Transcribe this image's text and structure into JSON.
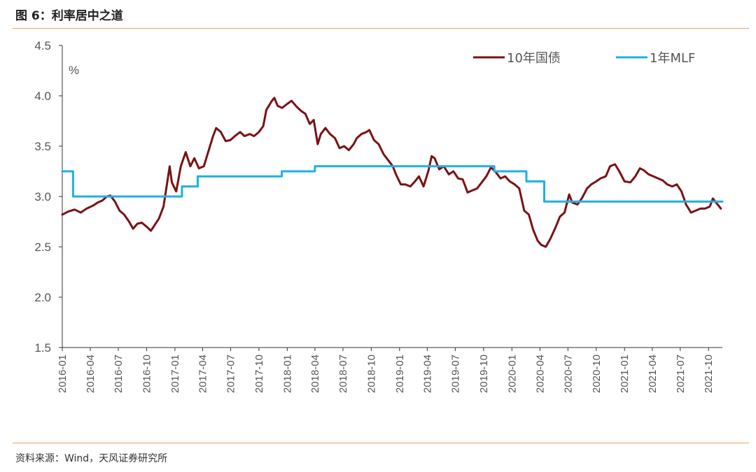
{
  "figure": {
    "title": "图 6：利率居中之道",
    "source": "资料来源：Wind，天风证券研究所"
  },
  "colors": {
    "rule": "#f0a35a",
    "series_bond": "#7b1113",
    "series_mlf": "#1fb0e0",
    "axis": "#333333"
  },
  "chart_data": {
    "type": "line",
    "title": "",
    "xlabel": "",
    "ylabel": "%",
    "ylim": [
      1.5,
      4.5
    ],
    "xlim": [
      "2016-01-01",
      "2021-11-15"
    ],
    "y_ticks": [
      "4.5",
      "4.0",
      "3.5",
      "3.0",
      "2.5",
      "2.0",
      "1.5"
    ],
    "x_ticks": [
      "2016-01",
      "2016-04",
      "2016-07",
      "2016-10",
      "2017-01",
      "2017-04",
      "2017-07",
      "2017-10",
      "2018-01",
      "2018-04",
      "2018-07",
      "2018-10",
      "2019-01",
      "2019-04",
      "2019-07",
      "2019-10",
      "2020-01",
      "2020-04",
      "2020-07",
      "2020-10",
      "2021-01",
      "2021-04",
      "2021-07",
      "2021-10"
    ],
    "grid": false,
    "legend_position": "top-right",
    "series": [
      {
        "name": "10年国债",
        "step": false,
        "points": [
          [
            "2016-01-01",
            2.82
          ],
          [
            "2016-01-20",
            2.85
          ],
          [
            "2016-02-10",
            2.87
          ],
          [
            "2016-03-01",
            2.84
          ],
          [
            "2016-03-20",
            2.88
          ],
          [
            "2016-04-10",
            2.91
          ],
          [
            "2016-04-25",
            2.94
          ],
          [
            "2016-05-10",
            2.96
          ],
          [
            "2016-05-25",
            3.0
          ],
          [
            "2016-06-05",
            3.01
          ],
          [
            "2016-06-20",
            2.95
          ],
          [
            "2016-07-05",
            2.86
          ],
          [
            "2016-07-20",
            2.82
          ],
          [
            "2016-08-05",
            2.75
          ],
          [
            "2016-08-18",
            2.68
          ],
          [
            "2016-09-01",
            2.73
          ],
          [
            "2016-09-15",
            2.74
          ],
          [
            "2016-10-01",
            2.7
          ],
          [
            "2016-10-15",
            2.66
          ],
          [
            "2016-10-28",
            2.72
          ],
          [
            "2016-11-10",
            2.78
          ],
          [
            "2016-11-25",
            2.9
          ],
          [
            "2016-12-05",
            3.1
          ],
          [
            "2016-12-15",
            3.3
          ],
          [
            "2016-12-22",
            3.14
          ],
          [
            "2017-01-05",
            3.05
          ],
          [
            "2017-01-20",
            3.3
          ],
          [
            "2017-02-05",
            3.44
          ],
          [
            "2017-02-20",
            3.3
          ],
          [
            "2017-03-05",
            3.38
          ],
          [
            "2017-03-20",
            3.28
          ],
          [
            "2017-04-05",
            3.3
          ],
          [
            "2017-04-20",
            3.45
          ],
          [
            "2017-05-05",
            3.6
          ],
          [
            "2017-05-15",
            3.68
          ],
          [
            "2017-05-30",
            3.64
          ],
          [
            "2017-06-15",
            3.55
          ],
          [
            "2017-06-30",
            3.56
          ],
          [
            "2017-07-15",
            3.6
          ],
          [
            "2017-08-01",
            3.64
          ],
          [
            "2017-08-15",
            3.6
          ],
          [
            "2017-09-01",
            3.62
          ],
          [
            "2017-09-15",
            3.6
          ],
          [
            "2017-10-01",
            3.64
          ],
          [
            "2017-10-15",
            3.7
          ],
          [
            "2017-10-25",
            3.86
          ],
          [
            "2017-11-10",
            3.94
          ],
          [
            "2017-11-20",
            3.98
          ],
          [
            "2017-12-01",
            3.9
          ],
          [
            "2017-12-15",
            3.88
          ],
          [
            "2018-01-01",
            3.92
          ],
          [
            "2018-01-15",
            3.95
          ],
          [
            "2018-02-01",
            3.89
          ],
          [
            "2018-02-15",
            3.85
          ],
          [
            "2018-03-01",
            3.82
          ],
          [
            "2018-03-15",
            3.72
          ],
          [
            "2018-03-28",
            3.76
          ],
          [
            "2018-04-10",
            3.52
          ],
          [
            "2018-04-20",
            3.62
          ],
          [
            "2018-05-05",
            3.68
          ],
          [
            "2018-05-20",
            3.62
          ],
          [
            "2018-06-05",
            3.58
          ],
          [
            "2018-06-20",
            3.48
          ],
          [
            "2018-07-05",
            3.5
          ],
          [
            "2018-07-20",
            3.46
          ],
          [
            "2018-08-05",
            3.52
          ],
          [
            "2018-08-15",
            3.58
          ],
          [
            "2018-08-30",
            3.62
          ],
          [
            "2018-09-15",
            3.64
          ],
          [
            "2018-09-25",
            3.66
          ],
          [
            "2018-10-10",
            3.56
          ],
          [
            "2018-10-25",
            3.52
          ],
          [
            "2018-11-10",
            3.42
          ],
          [
            "2018-11-25",
            3.36
          ],
          [
            "2018-12-10",
            3.3
          ],
          [
            "2018-12-20",
            3.22
          ],
          [
            "2019-01-05",
            3.12
          ],
          [
            "2019-01-20",
            3.12
          ],
          [
            "2019-02-05",
            3.1
          ],
          [
            "2019-02-20",
            3.15
          ],
          [
            "2019-03-05",
            3.2
          ],
          [
            "2019-03-20",
            3.1
          ],
          [
            "2019-04-05",
            3.26
          ],
          [
            "2019-04-15",
            3.4
          ],
          [
            "2019-04-25",
            3.38
          ],
          [
            "2019-05-10",
            3.27
          ],
          [
            "2019-05-25",
            3.3
          ],
          [
            "2019-06-10",
            3.22
          ],
          [
            "2019-06-25",
            3.25
          ],
          [
            "2019-07-10",
            3.18
          ],
          [
            "2019-07-25",
            3.17
          ],
          [
            "2019-08-10",
            3.04
          ],
          [
            "2019-08-25",
            3.06
          ],
          [
            "2019-09-10",
            3.08
          ],
          [
            "2019-09-25",
            3.14
          ],
          [
            "2019-10-10",
            3.2
          ],
          [
            "2019-10-25",
            3.29
          ],
          [
            "2019-11-10",
            3.24
          ],
          [
            "2019-11-25",
            3.18
          ],
          [
            "2019-12-10",
            3.2
          ],
          [
            "2019-12-25",
            3.15
          ],
          [
            "2020-01-10",
            3.12
          ],
          [
            "2020-01-25",
            3.08
          ],
          [
            "2020-02-10",
            2.86
          ],
          [
            "2020-02-25",
            2.82
          ],
          [
            "2020-03-10",
            2.67
          ],
          [
            "2020-03-25",
            2.56
          ],
          [
            "2020-04-05",
            2.52
          ],
          [
            "2020-04-20",
            2.5
          ],
          [
            "2020-05-05",
            2.58
          ],
          [
            "2020-05-20",
            2.68
          ],
          [
            "2020-06-05",
            2.8
          ],
          [
            "2020-06-20",
            2.84
          ],
          [
            "2020-07-05",
            3.02
          ],
          [
            "2020-07-15",
            2.94
          ],
          [
            "2020-08-01",
            2.92
          ],
          [
            "2020-08-15",
            2.98
          ],
          [
            "2020-09-01",
            3.08
          ],
          [
            "2020-09-15",
            3.12
          ],
          [
            "2020-10-01",
            3.15
          ],
          [
            "2020-10-15",
            3.18
          ],
          [
            "2020-11-01",
            3.2
          ],
          [
            "2020-11-15",
            3.3
          ],
          [
            "2020-12-01",
            3.32
          ],
          [
            "2020-12-15",
            3.25
          ],
          [
            "2021-01-01",
            3.15
          ],
          [
            "2021-01-20",
            3.14
          ],
          [
            "2021-02-05",
            3.2
          ],
          [
            "2021-02-20",
            3.28
          ],
          [
            "2021-03-05",
            3.26
          ],
          [
            "2021-03-20",
            3.22
          ],
          [
            "2021-04-05",
            3.2
          ],
          [
            "2021-04-20",
            3.18
          ],
          [
            "2021-05-05",
            3.16
          ],
          [
            "2021-05-20",
            3.12
          ],
          [
            "2021-06-05",
            3.1
          ],
          [
            "2021-06-20",
            3.12
          ],
          [
            "2021-07-05",
            3.05
          ],
          [
            "2021-07-20",
            2.92
          ],
          [
            "2021-08-05",
            2.84
          ],
          [
            "2021-08-20",
            2.86
          ],
          [
            "2021-09-05",
            2.88
          ],
          [
            "2021-09-20",
            2.88
          ],
          [
            "2021-10-05",
            2.9
          ],
          [
            "2021-10-15",
            2.98
          ],
          [
            "2021-10-25",
            2.94
          ],
          [
            "2021-11-05",
            2.9
          ],
          [
            "2021-11-10",
            2.88
          ]
        ]
      },
      {
        "name": "1年MLF",
        "step": true,
        "points": [
          [
            "2016-01-01",
            3.25
          ],
          [
            "2016-02-05",
            3.0
          ],
          [
            "2017-01-24",
            3.1
          ],
          [
            "2017-03-16",
            3.2
          ],
          [
            "2017-12-14",
            3.25
          ],
          [
            "2018-04-01",
            3.3
          ],
          [
            "2019-11-05",
            3.25
          ],
          [
            "2020-02-17",
            3.15
          ],
          [
            "2020-04-15",
            2.95
          ],
          [
            "2021-11-15",
            2.95
          ]
        ]
      }
    ]
  }
}
